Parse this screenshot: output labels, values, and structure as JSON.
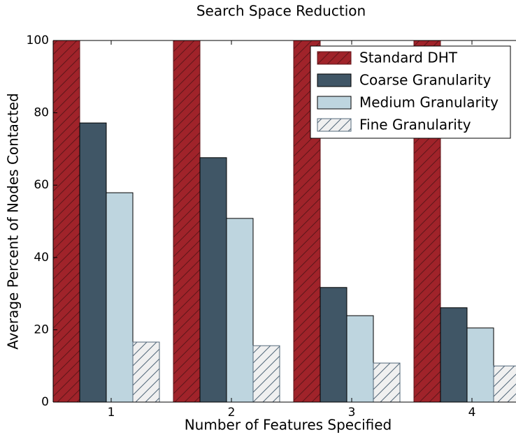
{
  "chart_data": {
    "type": "bar",
    "title": "Search Space Reduction",
    "x_label": "Number of Features Specified",
    "y_label": "Average Percent of Nodes Contacted",
    "categories": [
      "1",
      "2",
      "3",
      "4"
    ],
    "series": [
      {
        "name": "Standard DHT",
        "color": "#a0232a",
        "hatch": true,
        "values": [
          100,
          100,
          100,
          100
        ]
      },
      {
        "name": "Coarse Granularity",
        "color": "#405666",
        "hatch": false,
        "values": [
          77.2,
          67.6,
          31.7,
          26.1
        ]
      },
      {
        "name": "Medium Granularity",
        "color": "#bed5df",
        "hatch": false,
        "values": [
          57.9,
          50.8,
          23.9,
          20.5
        ]
      },
      {
        "name": "Fine Granularity",
        "color": "#f0f0f0",
        "hatch": true,
        "values": [
          16.6,
          15.6,
          10.8,
          10.0
        ]
      }
    ],
    "ylim": [
      0,
      100
    ],
    "yticks": [
      0,
      20,
      40,
      60,
      80,
      100
    ],
    "legend": "upper right"
  }
}
